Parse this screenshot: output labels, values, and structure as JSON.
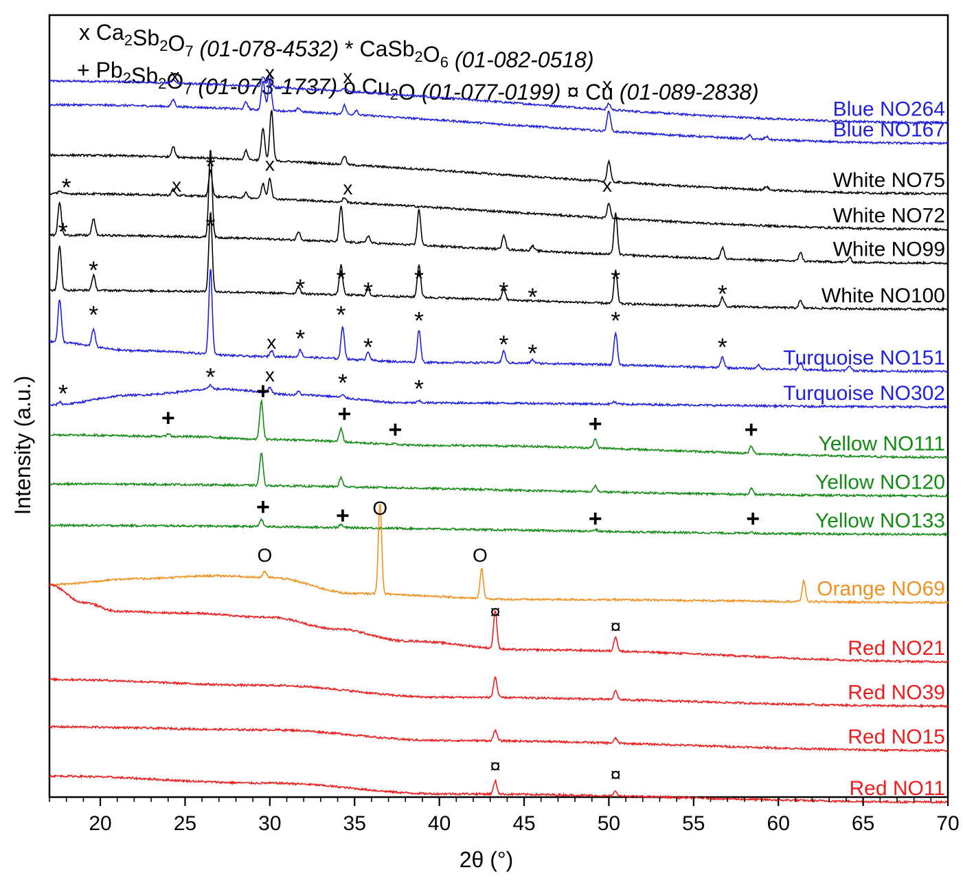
{
  "chart_data": {
    "type": "line",
    "xlabel": "2θ (°)",
    "ylabel": "Intensity (a.u.)",
    "xlim": [
      17,
      70
    ],
    "x_ticks": [
      20,
      25,
      30,
      35,
      40,
      45,
      50,
      55,
      60,
      65,
      70
    ],
    "grid": false,
    "legend_rows": [
      [
        {
          "symbol": "x",
          "formula": [
            [
              "Ca",
              ""
            ],
            [
              "2",
              "sub"
            ],
            [
              "Sb",
              ""
            ],
            [
              "2",
              "sub"
            ],
            [
              "O",
              ""
            ],
            [
              "7",
              "sub"
            ]
          ],
          "ref": "(01-078-4532)"
        },
        {
          "symbol": "*",
          "formula": [
            [
              "CaSb",
              ""
            ],
            [
              "2",
              "sub"
            ],
            [
              "O",
              ""
            ],
            [
              "6",
              "sub"
            ]
          ],
          "ref": "(01-082-0518)"
        }
      ],
      [
        {
          "symbol": "+",
          "formula": [
            [
              "Pb",
              ""
            ],
            [
              "2",
              "sub"
            ],
            [
              "Sb",
              ""
            ],
            [
              "2",
              "sub"
            ],
            [
              "O",
              ""
            ],
            [
              "7",
              "sub"
            ]
          ],
          "ref": "(01-073-1737)"
        },
        {
          "symbol": "o",
          "formula": [
            [
              "Cu",
              ""
            ],
            [
              "2",
              "sub"
            ],
            [
              "O",
              ""
            ]
          ],
          "ref": "(01-077-0199)"
        },
        {
          "symbol": "¤",
          "formula": [
            [
              "Cu",
              ""
            ]
          ],
          "ref": "(01-089-2838)"
        }
      ]
    ],
    "series": [
      {
        "name": "Blue NO264",
        "color": "#1f1fe0",
        "baseline": [
          [
            17,
            8.35
          ],
          [
            70,
            7.65
          ]
        ],
        "peaks": [
          [
            24.3,
            0.06
          ],
          [
            29.6,
            0.18
          ],
          [
            30.0,
            0.2
          ],
          [
            34.4,
            0.05
          ],
          [
            50.0,
            0.1
          ]
        ],
        "markers": [
          [
            "x",
            24.4,
            8.45
          ],
          [
            "x",
            30.0,
            8.5
          ],
          [
            "x",
            34.6,
            8.43
          ],
          [
            "x",
            49.9,
            8.3
          ]
        ]
      },
      {
        "name": "Blue NO167",
        "color": "#1f1fe0",
        "baseline": [
          [
            17,
            7.95
          ],
          [
            70,
            7.3
          ]
        ],
        "peaks": [
          [
            24.3,
            0.12
          ],
          [
            28.6,
            0.12
          ],
          [
            29.6,
            0.5
          ],
          [
            30.0,
            0.5
          ],
          [
            31.7,
            0.06
          ],
          [
            34.4,
            0.15
          ],
          [
            35.1,
            0.08
          ],
          [
            50.0,
            0.35
          ],
          [
            58.3,
            0.06
          ],
          [
            59.3,
            0.05
          ]
        ],
        "markers": []
      },
      {
        "name": "White NO75",
        "color": "#000000",
        "baseline": [
          [
            17,
            7.1
          ],
          [
            70,
            6.45
          ]
        ],
        "peaks": [
          [
            24.3,
            0.18
          ],
          [
            28.6,
            0.15
          ],
          [
            29.6,
            0.55
          ],
          [
            30.1,
            0.85
          ],
          [
            34.4,
            0.15
          ],
          [
            50.0,
            0.35
          ],
          [
            59.3,
            0.06
          ]
        ],
        "markers": []
      },
      {
        "name": "White NO72",
        "color": "#000000",
        "baseline": [
          [
            17,
            6.45
          ],
          [
            70,
            5.85
          ]
        ],
        "peaks": [
          [
            17.6,
            0.05
          ],
          [
            24.3,
            0.1
          ],
          [
            26.5,
            0.45
          ],
          [
            28.6,
            0.08
          ],
          [
            29.6,
            0.25
          ],
          [
            30.0,
            0.35
          ],
          [
            34.4,
            0.08
          ],
          [
            50.0,
            0.25
          ]
        ],
        "markers": [
          [
            "*",
            18.0,
            6.6
          ],
          [
            "x",
            24.5,
            6.6
          ],
          [
            "*",
            26.5,
            6.95
          ],
          [
            "x",
            30.0,
            6.95
          ],
          [
            "x",
            34.6,
            6.55
          ],
          [
            "x",
            49.9,
            6.6
          ]
        ]
      },
      {
        "name": "White NO99",
        "color": "#000000",
        "baseline": [
          [
            17,
            5.75
          ],
          [
            70,
            5.28
          ]
        ],
        "peaks": [
          [
            17.6,
            0.55
          ],
          [
            19.6,
            0.28
          ],
          [
            26.5,
            1.5
          ],
          [
            31.7,
            0.15
          ],
          [
            34.2,
            0.6
          ],
          [
            35.8,
            0.12
          ],
          [
            38.8,
            0.6
          ],
          [
            43.8,
            0.25
          ],
          [
            45.5,
            0.08
          ],
          [
            50.4,
            0.7
          ],
          [
            56.7,
            0.2
          ],
          [
            61.3,
            0.15
          ],
          [
            64.2,
            0.08
          ]
        ],
        "markers": [
          [
            "*",
            26.5,
            5.95
          ]
        ]
      },
      {
        "name": "White NO100",
        "color": "#000000",
        "baseline": [
          [
            17,
            4.82
          ],
          [
            70,
            4.5
          ]
        ],
        "peaks": [
          [
            17.6,
            0.75
          ],
          [
            19.6,
            0.25
          ],
          [
            26.5,
            1.35
          ],
          [
            31.7,
            0.12
          ],
          [
            34.2,
            0.5
          ],
          [
            35.8,
            0.1
          ],
          [
            38.8,
            0.55
          ],
          [
            43.8,
            0.18
          ],
          [
            50.4,
            0.55
          ],
          [
            56.7,
            0.15
          ],
          [
            61.3,
            0.12
          ]
        ],
        "markers": [
          [
            "*",
            17.8,
            5.85
          ],
          [
            "*",
            19.6,
            5.2
          ],
          [
            "*",
            31.8,
            4.9
          ],
          [
            "*",
            34.2,
            5.05
          ],
          [
            "*",
            35.8,
            4.85
          ],
          [
            "*",
            38.8,
            5.05
          ],
          [
            "*",
            43.8,
            4.85
          ],
          [
            "*",
            45.5,
            4.75
          ],
          [
            "*",
            50.4,
            5.05
          ],
          [
            "*",
            56.7,
            4.8
          ]
        ]
      },
      {
        "name": "Turquoise NO151",
        "color": "#1f1fe0",
        "baseline": [
          [
            17,
            3.95
          ],
          [
            22,
            3.8
          ],
          [
            30,
            3.7
          ],
          [
            40,
            3.6
          ],
          [
            70,
            3.45
          ]
        ],
        "peaks": [
          [
            17.6,
            0.72
          ],
          [
            19.6,
            0.3
          ],
          [
            26.5,
            1.45
          ],
          [
            30.1,
            0.1
          ],
          [
            31.8,
            0.12
          ],
          [
            34.3,
            0.55
          ],
          [
            35.8,
            0.15
          ],
          [
            38.8,
            0.55
          ],
          [
            43.8,
            0.2
          ],
          [
            45.5,
            0.06
          ],
          [
            50.4,
            0.55
          ],
          [
            56.7,
            0.18
          ],
          [
            58.8,
            0.06
          ],
          [
            61.3,
            0.12
          ],
          [
            64.2,
            0.08
          ]
        ],
        "markers": [
          [
            "*",
            19.6,
            4.45
          ],
          [
            "x",
            30.1,
            3.95
          ],
          [
            "*",
            31.8,
            4.05
          ],
          [
            "*",
            34.2,
            4.45
          ],
          [
            "*",
            35.8,
            3.9
          ],
          [
            "*",
            38.8,
            4.35
          ],
          [
            "*",
            43.8,
            3.95
          ],
          [
            "*",
            45.5,
            3.8
          ],
          [
            "*",
            50.4,
            4.35
          ],
          [
            "*",
            56.7,
            3.9
          ]
        ]
      },
      {
        "name": "Turquoise NO302",
        "color": "#1f1fe0",
        "baseline": [
          [
            17,
            2.88
          ],
          [
            22,
            3.05
          ],
          [
            27,
            3.15
          ],
          [
            32,
            3.05
          ],
          [
            38,
            2.92
          ],
          [
            70,
            2.85
          ]
        ],
        "peaks": [
          [
            17.6,
            0.05
          ],
          [
            26.5,
            0.08
          ],
          [
            30.0,
            0.1
          ],
          [
            31.7,
            0.06
          ],
          [
            34.3,
            0.04
          ],
          [
            38.8,
            0.03
          ],
          [
            50.3,
            0.04
          ]
        ],
        "markers": [
          [
            "*",
            17.8,
            3.12
          ],
          [
            "*",
            26.5,
            3.4
          ],
          [
            "x",
            30.0,
            3.4
          ],
          [
            "*",
            34.3,
            3.3
          ],
          [
            "*",
            38.8,
            3.2
          ]
        ]
      },
      {
        "name": "Yellow NO111",
        "color": "#138a13",
        "baseline": [
          [
            17,
            2.38
          ],
          [
            25,
            2.35
          ],
          [
            30,
            2.3
          ],
          [
            40,
            2.2
          ],
          [
            70,
            2.0
          ]
        ],
        "peaks": [
          [
            24.0,
            0.05
          ],
          [
            29.5,
            0.65
          ],
          [
            34.2,
            0.22
          ],
          [
            37.4,
            0.03
          ],
          [
            49.2,
            0.15
          ],
          [
            58.4,
            0.12
          ]
        ],
        "markers": [
          [
            "+",
            24.0,
            2.65
          ],
          [
            "+",
            29.6,
            3.1
          ],
          [
            "+",
            34.4,
            2.72
          ],
          [
            "+",
            37.4,
            2.45
          ],
          [
            "+",
            49.2,
            2.55
          ],
          [
            "+",
            58.4,
            2.45
          ]
        ]
      },
      {
        "name": "Yellow NO120",
        "color": "#138a13",
        "baseline": [
          [
            17,
            1.55
          ],
          [
            70,
            1.35
          ]
        ],
        "peaks": [
          [
            29.5,
            0.55
          ],
          [
            34.2,
            0.15
          ],
          [
            49.2,
            0.1
          ],
          [
            58.4,
            0.1
          ]
        ],
        "markers": []
      },
      {
        "name": "Yellow NO133",
        "color": "#138a13",
        "baseline": [
          [
            17,
            0.85
          ],
          [
            70,
            0.7
          ]
        ],
        "peaks": [
          [
            29.5,
            0.12
          ],
          [
            34.2,
            0.05
          ],
          [
            49.2,
            0.03
          ],
          [
            58.4,
            0.03
          ]
        ],
        "markers": [
          [
            "+",
            29.6,
            1.15
          ],
          [
            "+",
            34.3,
            1.0
          ],
          [
            "o",
            36.5,
            1.15
          ],
          [
            "+",
            49.2,
            0.95
          ],
          [
            "+",
            58.5,
            0.95
          ]
        ]
      },
      {
        "name": "Orange NO69",
        "color": "#f0901e",
        "baseline": [
          [
            17,
            -0.15
          ],
          [
            22,
            -0.05
          ],
          [
            27,
            0.0
          ],
          [
            30,
            -0.03
          ],
          [
            35,
            -0.3
          ],
          [
            45,
            -0.4
          ],
          [
            70,
            -0.45
          ]
        ],
        "peaks": [
          [
            29.7,
            0.1
          ],
          [
            36.5,
            1.55
          ],
          [
            42.5,
            0.5
          ],
          [
            61.5,
            0.35
          ]
        ],
        "markers": [
          [
            "o",
            29.7,
            0.35
          ],
          [
            "o",
            42.4,
            0.35
          ]
        ]
      },
      {
        "name": "Red NO21",
        "color": "#ee1c1c",
        "baseline": [
          [
            17,
            -0.15
          ],
          [
            19,
            -0.45
          ],
          [
            21,
            -0.6
          ],
          [
            25,
            -0.63
          ],
          [
            30,
            -0.7
          ],
          [
            34,
            -0.9
          ],
          [
            38,
            -1.1
          ],
          [
            45,
            -1.25
          ],
          [
            70,
            -1.45
          ]
        ],
        "peaks": [
          [
            43.3,
            0.65
          ],
          [
            50.4,
            0.25
          ]
        ],
        "markers": [
          [
            "¤",
            43.3,
            -0.6
          ],
          [
            "¤",
            50.4,
            -0.85
          ]
        ]
      },
      {
        "name": "Red NO39",
        "color": "#ee1c1c",
        "baseline": [
          [
            17,
            -1.75
          ],
          [
            30,
            -1.85
          ],
          [
            40,
            -2.05
          ],
          [
            70,
            -2.2
          ]
        ],
        "peaks": [
          [
            43.3,
            0.35
          ],
          [
            50.4,
            0.15
          ]
        ],
        "markers": []
      },
      {
        "name": "Red NO15",
        "color": "#ee1c1c",
        "baseline": [
          [
            17,
            -2.55
          ],
          [
            30,
            -2.6
          ],
          [
            40,
            -2.78
          ],
          [
            70,
            -2.95
          ]
        ],
        "peaks": [
          [
            43.3,
            0.18
          ],
          [
            50.4,
            0.08
          ]
        ],
        "markers": []
      },
      {
        "name": "Red NO11",
        "color": "#ee1c1c",
        "baseline": [
          [
            17,
            -3.38
          ],
          [
            30,
            -3.5
          ],
          [
            40,
            -3.68
          ],
          [
            70,
            -3.82
          ]
        ],
        "peaks": [
          [
            43.3,
            0.22
          ],
          [
            50.4,
            0.08
          ]
        ],
        "markers": [
          [
            "¤",
            43.3,
            -3.2
          ],
          [
            "¤",
            50.4,
            -3.35
          ]
        ]
      }
    ]
  }
}
